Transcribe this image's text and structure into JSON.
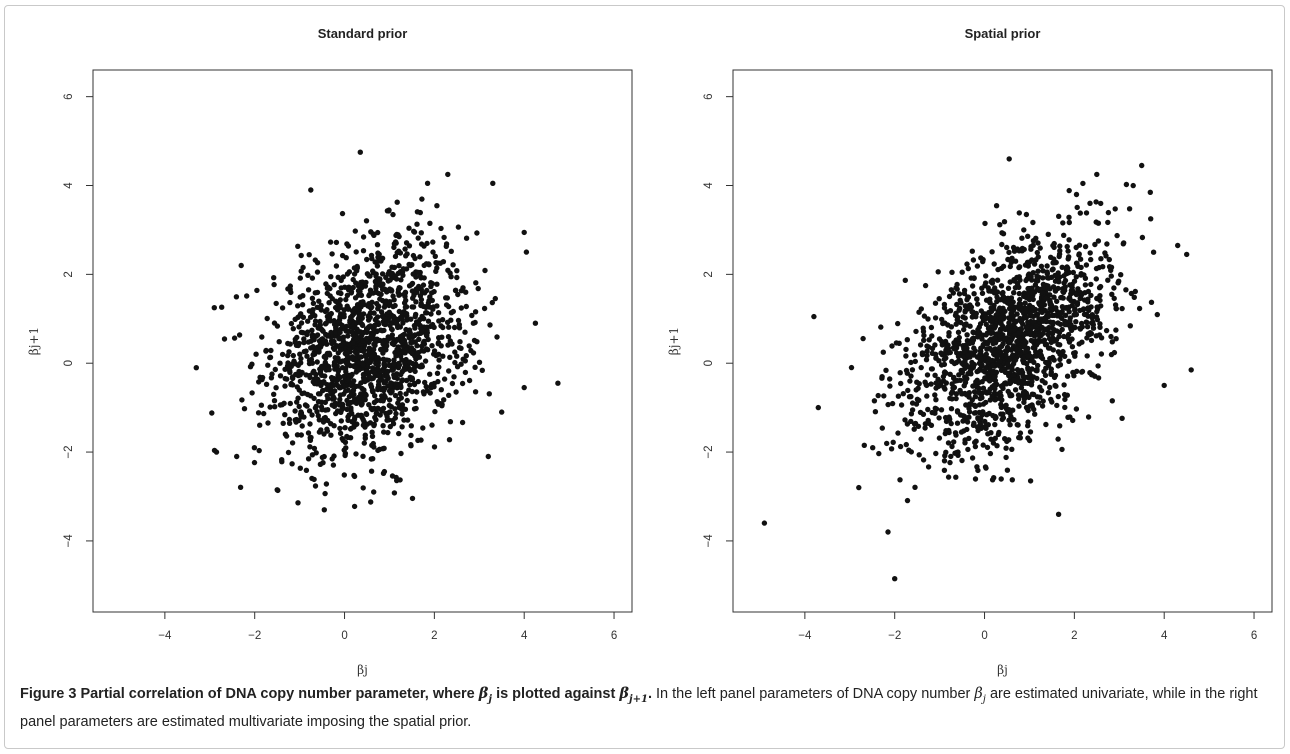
{
  "chart_data": [
    {
      "type": "scatter",
      "title": "Standard prior",
      "xlabel": "βj",
      "ylabel": "βj+1",
      "xlim": [
        -5.6,
        6.4
      ],
      "ylim": [
        -5.6,
        6.6
      ],
      "xticks": [
        "−4",
        "−2",
        "0",
        "2",
        "4",
        "6"
      ],
      "yticks": [
        "−4",
        "−2",
        "0",
        "2",
        "4",
        "6"
      ],
      "grid": false,
      "n_points": 1600,
      "center": [
        0.55,
        0.35
      ],
      "spread": [
        1.1,
        1.2
      ],
      "correlation": 0.25,
      "points": [
        [
          -3.3,
          -0.1
        ],
        [
          4.75,
          -0.45
        ],
        [
          0.35,
          4.75
        ],
        [
          -0.45,
          -3.3
        ],
        [
          4.25,
          0.9
        ],
        [
          4.05,
          2.5
        ],
        [
          3.3,
          4.05
        ],
        [
          2.3,
          4.25
        ],
        [
          -0.75,
          3.9
        ],
        [
          0.65,
          -2.9
        ],
        [
          -2.85,
          -2.0
        ],
        [
          -2.4,
          -2.1
        ],
        [
          3.2,
          -2.1
        ],
        [
          3.5,
          -1.1
        ],
        [
          4.0,
          -0.55
        ],
        [
          -2.9,
          1.25
        ],
        [
          -2.3,
          2.2
        ],
        [
          -1.5,
          -2.85
        ],
        [
          1.85,
          4.05
        ]
      ]
    },
    {
      "type": "scatter",
      "title": "Spatial prior",
      "xlabel": "βj",
      "ylabel": "βj+1",
      "xlim": [
        -5.6,
        6.4
      ],
      "ylim": [
        -5.6,
        6.6
      ],
      "xticks": [
        "−4",
        "−2",
        "0",
        "2",
        "4",
        "6"
      ],
      "yticks": [
        "−4",
        "−2",
        "0",
        "2",
        "4",
        "6"
      ],
      "grid": false,
      "n_points": 1600,
      "center": [
        0.55,
        0.45
      ],
      "spread": [
        1.15,
        1.25
      ],
      "correlation": 0.5,
      "points": [
        [
          -4.9,
          -3.6
        ],
        [
          -2.0,
          -4.85
        ],
        [
          -2.15,
          -3.8
        ],
        [
          0.55,
          4.6
        ],
        [
          3.5,
          4.45
        ],
        [
          4.6,
          -0.15
        ],
        [
          -3.8,
          1.05
        ],
        [
          4.3,
          2.65
        ],
        [
          4.5,
          2.45
        ],
        [
          3.7,
          3.25
        ],
        [
          -3.7,
          -1.0
        ],
        [
          1.65,
          -3.4
        ],
        [
          2.5,
          4.25
        ],
        [
          -2.8,
          -2.8
        ],
        [
          4.0,
          -0.5
        ]
      ]
    }
  ],
  "caption": {
    "label": "Figure 3",
    "bold_text": "Partial correlation of DNA copy number parameter, where",
    "var_a": "β",
    "sub_a": "j",
    "mid": "is plotted against",
    "var_b": "β",
    "sub_b": "j+1",
    "end": ".",
    "line1": "In the left panel parameters of DNA copy",
    "line2_start": "number",
    "var_c": "β",
    "sub_c": "j",
    "line2_end": "are estimated univariate, while in the right panel parameters are estimated multivariate imposing the spatial prior."
  },
  "colors": {
    "points": "#111111",
    "axes": "#333333",
    "frame": "#c9c9c9"
  }
}
